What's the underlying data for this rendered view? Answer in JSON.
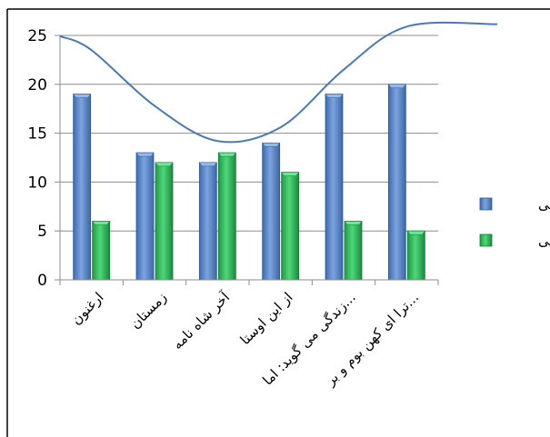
{
  "chart_data": {
    "type": "bar",
    "categories": [
      "ارغنون",
      "زمستان",
      "آخر شاه نامه",
      "از این اوستا",
      "زندگی می گوید: اما...",
      "ترا ای کهن بوم و بر..."
    ],
    "series": [
      {
        "name": "ذهنی",
        "values": [
          19,
          13,
          12,
          14,
          19,
          20
        ],
        "color": "#4f81bd"
      },
      {
        "name": "عینی",
        "values": [
          6,
          12,
          13,
          11,
          6,
          5
        ],
        "color": "#2fb25a"
      }
    ],
    "trendline": {
      "series": "ذهنی",
      "kind": "polynomial",
      "color": "#4a7ab5",
      "values": [
        23.5,
        17.8,
        14.2,
        15.6,
        21.5,
        25.9
      ]
    },
    "ylim": [
      0,
      25
    ],
    "yticks": [
      0,
      5,
      10,
      15,
      20,
      25
    ],
    "grid": true,
    "legend": "right",
    "title": "",
    "xlabel": "",
    "ylabel": ""
  }
}
